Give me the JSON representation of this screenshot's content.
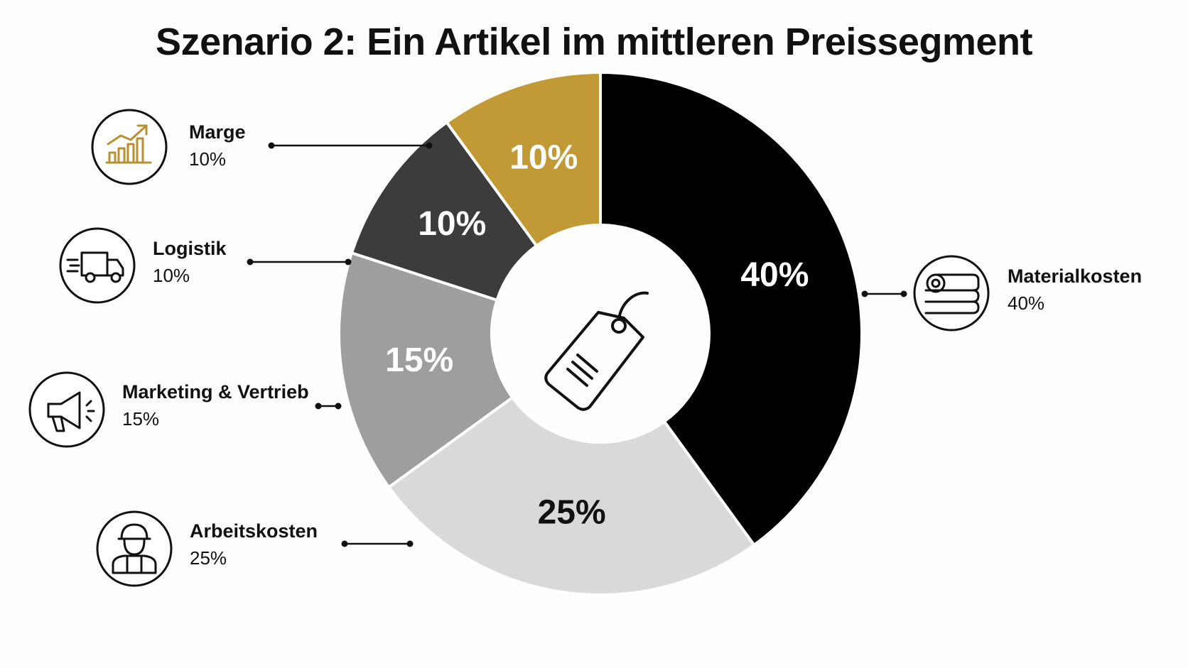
{
  "chart_data": {
    "type": "pie",
    "title": "Szenario 2: Ein Artikel im mittleren Preissegment",
    "center_icon": "price-tag-icon",
    "slices": [
      {
        "name": "Materialkosten",
        "value": 40,
        "label": "40%",
        "legend_value": "40%",
        "color": "#000000",
        "label_color": "#ffffff",
        "icon": "fabric-rolls-icon"
      },
      {
        "name": "Arbeitskosten",
        "value": 25,
        "label": "25%",
        "legend_value": "25%",
        "color": "#d9d9d9",
        "label_color": "#111111",
        "icon": "worker-icon"
      },
      {
        "name": "Marketing & Vertrieb",
        "value": 15,
        "label": "15%",
        "legend_value": "15%",
        "color": "#9e9e9e",
        "label_color": "#ffffff",
        "icon": "megaphone-icon"
      },
      {
        "name": "Logistik",
        "value": 10,
        "label": "10%",
        "legend_value": "10%",
        "color": "#3c3c3c",
        "label_color": "#ffffff",
        "icon": "truck-icon"
      },
      {
        "name": "Marge",
        "value": 10,
        "label": "10%",
        "legend_value": "10%",
        "color": "#c19a36",
        "label_color": "#ffffff",
        "icon": "growth-chart-icon"
      }
    ]
  }
}
